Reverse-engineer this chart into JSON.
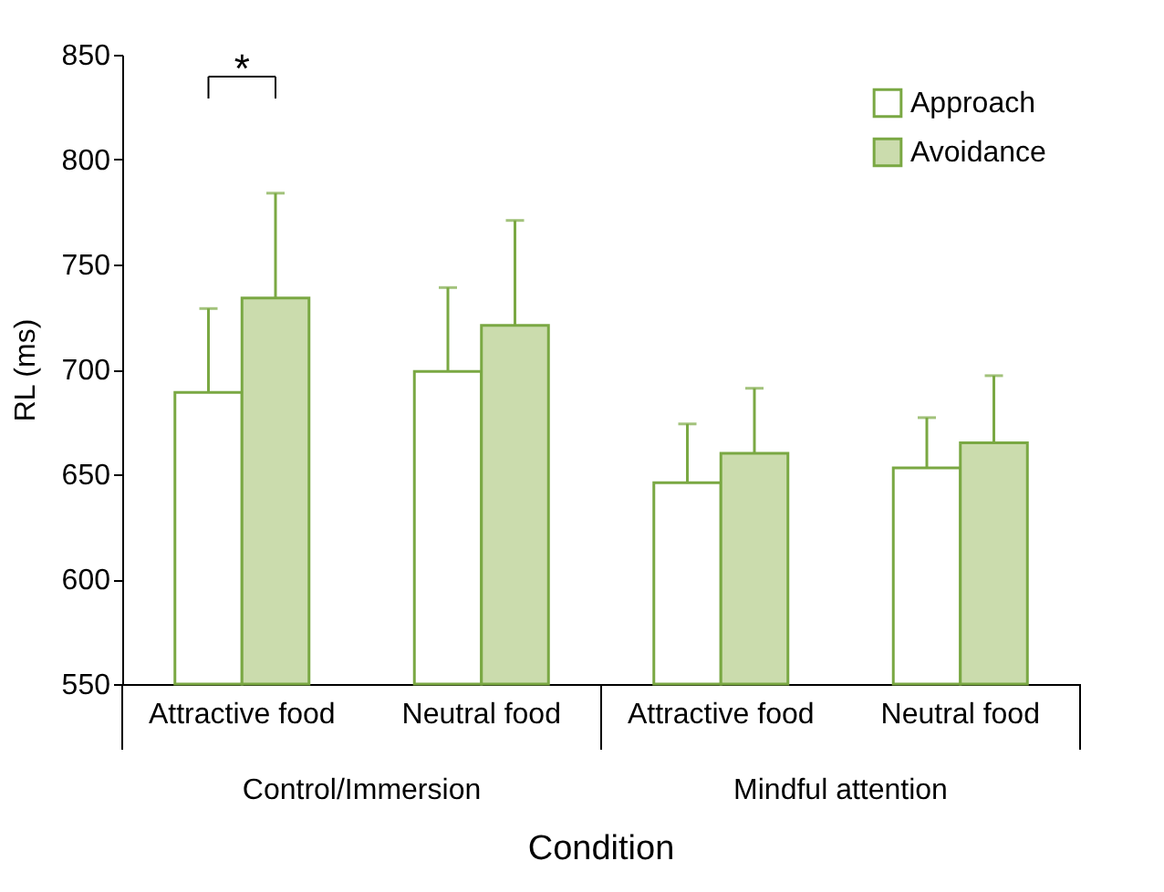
{
  "chart_data": {
    "type": "bar",
    "xlabel": "Condition",
    "ylabel": "RL (ms)",
    "categories": [
      "Attractive food",
      "Neutral food",
      "Attractive food",
      "Neutral food"
    ],
    "series": [
      {
        "name": "Approach",
        "color": "#ffffff",
        "values": [
          689,
          699,
          646,
          653
        ],
        "errors": [
          [
            689,
            729
          ],
          [
            699,
            739
          ],
          [
            646,
            674
          ],
          [
            653,
            677
          ]
        ]
      },
      {
        "name": "Avoidance",
        "color": "#cbdcad",
        "values": [
          734,
          721,
          660,
          665
        ],
        "errors": [
          [
            734,
            784
          ],
          [
            721,
            771
          ],
          [
            660,
            691
          ],
          [
            665,
            697
          ]
        ]
      }
    ],
    "ylim": [
      550,
      850
    ],
    "yticks": [
      550,
      600,
      650,
      700,
      750,
      800,
      850
    ],
    "grid": false,
    "legend": "top right",
    "annotations": [
      "*",
      "Control/Immersion",
      "Mindful attention"
    ]
  }
}
